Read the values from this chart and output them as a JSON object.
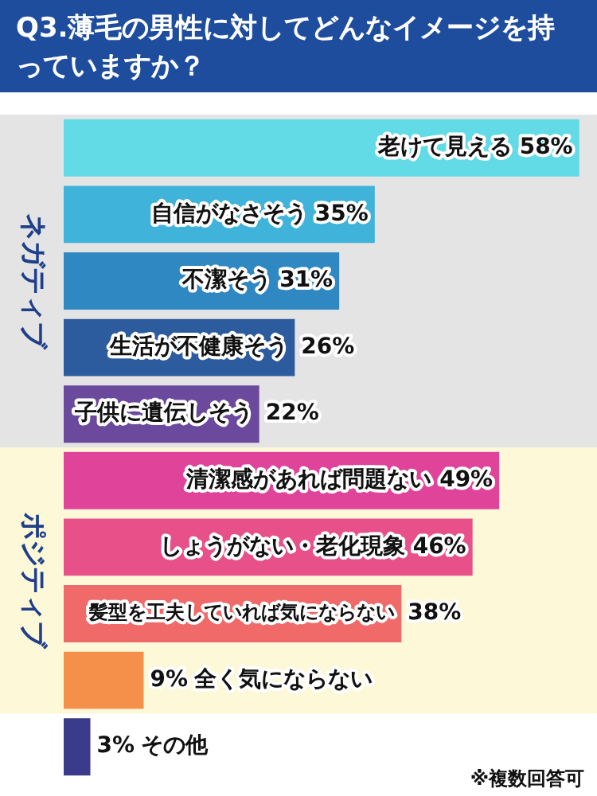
{
  "chart_data": {
    "type": "bar",
    "orientation": "horizontal",
    "title": "Q3.薄毛の男性に対してどんなイメージを持っていますか？",
    "categories": [
      "老けて見える",
      "自信がなさそう",
      "不潔そう",
      "生活が不健康そう",
      "子供に遺伝しそう",
      "清潔感があれば問題ない",
      "しょうがない・老化現象",
      "髪型を工夫していれば気にならない",
      "全く気にならない",
      "その他"
    ],
    "values": [
      58,
      35,
      31,
      26,
      22,
      49,
      46,
      38,
      9,
      3
    ],
    "colors": [
      "#62dbe6",
      "#3fb3d9",
      "#2f88c2",
      "#2d5c9e",
      "#6b4a9e",
      "#e0449a",
      "#e8508a",
      "#f06a6a",
      "#f5904a",
      "#3b3b8c"
    ],
    "value_labels": [
      "58%",
      "35%",
      "31%",
      "26%",
      "22%",
      "49%",
      "46%",
      "38%",
      "9%",
      "3%"
    ],
    "legend": false,
    "bands": [
      {
        "axis": "y",
        "from": "老けて見える",
        "to": "子供に遺伝しそう",
        "label": "ネガティブ",
        "color": "#e4e4e4"
      },
      {
        "axis": "y",
        "from": "清潔感があれば問題ない",
        "to": "全く気にならない",
        "label": "ポジティブ",
        "color": "#fdf8d8"
      }
    ],
    "annotations": [
      "※複数回答可"
    ]
  }
}
